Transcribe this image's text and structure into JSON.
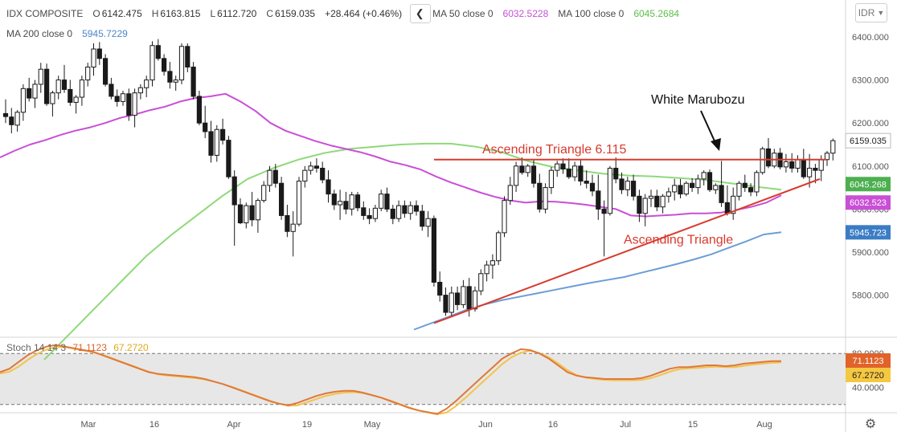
{
  "header": {
    "symbol": "IDX COMPOSITE",
    "o_key": "O",
    "open": "6142.475",
    "h_key": "H",
    "high": "6163.815",
    "l_key": "L",
    "low": "6112.720",
    "c_key": "C",
    "close": "6159.035",
    "change": "+28.464 (+0.46%)",
    "back_glyph": "❮",
    "ma50_label": "MA 50 close 0",
    "ma50_value": "6032.5228",
    "ma100_label": "MA 100 close 0",
    "ma100_value": "6045.2684",
    "ma200_label": "MA 200 close 0",
    "ma200_value": "5945.7229",
    "currency": "IDR"
  },
  "stoch": {
    "label": "Stoch 14 14 3",
    "k_value": "71.1123",
    "d_value": "67.2720"
  },
  "colors": {
    "up": "#ffffff",
    "down": "#1a1a1a",
    "wick": "#1a1a1a",
    "ma50": "#c94fd6",
    "ma100": "#8fd97a",
    "ma200": "#6b9ed6",
    "annotation": "#d83a2e",
    "stoch_k": "#e0783a",
    "stoch_d": "#f2c34e",
    "stoch_band": "#e7e7e7",
    "price_tag": "#3c3c3c",
    "grid": "#e6e6e6"
  },
  "chart_data": {
    "type": "candlestick",
    "title": "IDX COMPOSITE",
    "ylim": [
      5720,
      6440
    ],
    "y_ticks": [
      "6400.000",
      "6300.000",
      "6200.000",
      "6100.000",
      "6000.000",
      "5900.000",
      "5800.000"
    ],
    "x_ticks": [
      "Mar",
      "16",
      "Apr",
      "19",
      "May",
      "Jun",
      "16",
      "Jul",
      "15",
      "Aug"
    ],
    "price_tags": [
      "6159.035",
      "6045.268",
      "6032.523",
      "5945.723"
    ],
    "candles": [
      [
        6222,
        6255,
        6200,
        6215
      ],
      [
        6214,
        6235,
        6176,
        6196
      ],
      [
        6195,
        6230,
        6180,
        6225
      ],
      [
        6225,
        6290,
        6205,
        6280
      ],
      [
        6280,
        6305,
        6250,
        6258
      ],
      [
        6258,
        6300,
        6235,
        6290
      ],
      [
        6290,
        6340,
        6270,
        6325
      ],
      [
        6325,
        6338,
        6240,
        6245
      ],
      [
        6245,
        6275,
        6215,
        6270
      ],
      [
        6270,
        6310,
        6255,
        6300
      ],
      [
        6300,
        6335,
        6270,
        6278
      ],
      [
        6278,
        6300,
        6240,
        6248
      ],
      [
        6248,
        6265,
        6222,
        6260
      ],
      [
        6260,
        6310,
        6240,
        6300
      ],
      [
        6300,
        6340,
        6285,
        6330
      ],
      [
        6330,
        6385,
        6310,
        6372
      ],
      [
        6372,
        6388,
        6335,
        6350
      ],
      [
        6350,
        6360,
        6285,
        6290
      ],
      [
        6290,
        6305,
        6255,
        6262
      ],
      [
        6262,
        6278,
        6238,
        6250
      ],
      [
        6250,
        6275,
        6240,
        6268
      ],
      [
        6268,
        6280,
        6205,
        6218
      ],
      [
        6218,
        6280,
        6190,
        6270
      ],
      [
        6270,
        6290,
        6255,
        6282
      ],
      [
        6282,
        6310,
        6260,
        6300
      ],
      [
        6300,
        6390,
        6285,
        6380
      ],
      [
        6380,
        6395,
        6345,
        6350
      ],
      [
        6350,
        6360,
        6310,
        6320
      ],
      [
        6320,
        6342,
        6280,
        6295
      ],
      [
        6295,
        6310,
        6275,
        6300
      ],
      [
        6300,
        6385,
        6290,
        6378
      ],
      [
        6378,
        6385,
        6318,
        6330
      ],
      [
        6330,
        6342,
        6255,
        6262
      ],
      [
        6262,
        6275,
        6195,
        6200
      ],
      [
        6200,
        6240,
        6165,
        6180
      ],
      [
        6180,
        6205,
        6108,
        6125
      ],
      [
        6125,
        6195,
        6110,
        6185
      ],
      [
        6185,
        6210,
        6150,
        6160
      ],
      [
        6160,
        6170,
        6070,
        6075
      ],
      [
        6075,
        6090,
        5915,
        6010
      ],
      [
        6010,
        6025,
        5965,
        5968
      ],
      [
        5968,
        6015,
        5955,
        6008
      ],
      [
        6008,
        6040,
        5960,
        5975
      ],
      [
        5975,
        6025,
        5945,
        6020
      ],
      [
        6020,
        6065,
        6015,
        6055
      ],
      [
        6055,
        6100,
        6040,
        6090
      ],
      [
        6090,
        6105,
        6050,
        6060
      ],
      [
        6060,
        6075,
        5975,
        5985
      ],
      [
        5985,
        6010,
        5935,
        5948
      ],
      [
        5948,
        5995,
        5890,
        5965
      ],
      [
        5965,
        6075,
        5960,
        6065
      ],
      [
        6065,
        6100,
        6050,
        6090
      ],
      [
        6090,
        6110,
        6080,
        6100
      ],
      [
        6100,
        6118,
        6085,
        6095
      ],
      [
        6095,
        6110,
        6060,
        6068
      ],
      [
        6068,
        6090,
        6015,
        6035
      ],
      [
        6035,
        6045,
        5998,
        6010
      ],
      [
        6010,
        6045,
        5975,
        6018
      ],
      [
        6018,
        6040,
        5988,
        6000
      ],
      [
        6000,
        6040,
        5985,
        6033
      ],
      [
        6033,
        6040,
        5995,
        6003
      ],
      [
        6003,
        6018,
        5975,
        5985
      ],
      [
        5985,
        6002,
        5965,
        5978
      ],
      [
        5978,
        6010,
        5970,
        6002
      ],
      [
        6002,
        6045,
        5995,
        6035
      ],
      [
        6035,
        6050,
        5993,
        6000
      ],
      [
        6000,
        6010,
        5965,
        5978
      ],
      [
        5978,
        6020,
        5970,
        6008
      ],
      [
        6008,
        6020,
        5980,
        5990
      ],
      [
        5990,
        6018,
        5975,
        6008
      ],
      [
        6008,
        6020,
        5985,
        5995
      ],
      [
        5995,
        6010,
        5950,
        5960
      ],
      [
        5960,
        5995,
        5935,
        5978
      ],
      [
        5978,
        5985,
        5820,
        5830
      ],
      [
        5830,
        5855,
        5785,
        5800
      ],
      [
        5800,
        5818,
        5752,
        5760
      ],
      [
        5760,
        5820,
        5750,
        5805
      ],
      [
        5805,
        5820,
        5765,
        5778
      ],
      [
        5778,
        5835,
        5770,
        5820
      ],
      [
        5820,
        5840,
        5750,
        5768
      ],
      [
        5768,
        5820,
        5762,
        5810
      ],
      [
        5810,
        5860,
        5800,
        5850
      ],
      [
        5850,
        5880,
        5832,
        5870
      ],
      [
        5870,
        5895,
        5838,
        5880
      ],
      [
        5880,
        5950,
        5870,
        5945
      ],
      [
        5945,
        6030,
        5935,
        6020
      ],
      [
        6020,
        6075,
        6010,
        6055
      ],
      [
        6055,
        6110,
        6040,
        6100
      ],
      [
        6100,
        6120,
        6080,
        6085
      ],
      [
        6085,
        6105,
        6075,
        6100
      ],
      [
        6100,
        6115,
        6050,
        6060
      ],
      [
        6060,
        6082,
        5992,
        6000
      ],
      [
        6000,
        6060,
        5990,
        6050
      ],
      [
        6050,
        6098,
        6035,
        6090
      ],
      [
        6090,
        6112,
        6075,
        6105
      ],
      [
        6105,
        6118,
        6082,
        6093
      ],
      [
        6093,
        6118,
        6070,
        6075
      ],
      [
        6075,
        6110,
        6065,
        6100
      ],
      [
        6100,
        6115,
        6055,
        6065
      ],
      [
        6065,
        6090,
        6048,
        6060
      ],
      [
        6060,
        6080,
        6030,
        6042
      ],
      [
        6042,
        6080,
        5975,
        6000
      ],
      [
        6000,
        6020,
        5890,
        5990
      ],
      [
        5990,
        6100,
        5985,
        6095
      ],
      [
        6095,
        6120,
        6060,
        6070
      ],
      [
        6070,
        6085,
        6035,
        6045
      ],
      [
        6045,
        6075,
        6030,
        6065
      ],
      [
        6065,
        6080,
        6020,
        6030
      ],
      [
        6030,
        6045,
        5970,
        5990
      ],
      [
        5990,
        6035,
        5960,
        6025
      ],
      [
        6025,
        6045,
        6005,
        6030
      ],
      [
        6030,
        6045,
        5995,
        6005
      ],
      [
        6005,
        6035,
        5990,
        6030
      ],
      [
        6030,
        6050,
        6015,
        6040
      ],
      [
        6040,
        6070,
        6020,
        6055
      ],
      [
        6055,
        6070,
        6025,
        6035
      ],
      [
        6035,
        6065,
        6030,
        6060
      ],
      [
        6060,
        6072,
        6040,
        6050
      ],
      [
        6050,
        6080,
        6035,
        6070
      ],
      [
        6070,
        6090,
        6055,
        6085
      ],
      [
        6085,
        6092,
        6040,
        6045
      ],
      [
        6045,
        6060,
        6035,
        6055
      ],
      [
        6055,
        6112,
        6005,
        6015
      ],
      [
        6015,
        6055,
        5985,
        5990
      ],
      [
        5990,
        6050,
        5975,
        6030
      ],
      [
        6030,
        6065,
        6020,
        6060
      ],
      [
        6060,
        6080,
        6040,
        6050
      ],
      [
        6050,
        6060,
        6030,
        6040
      ],
      [
        6040,
        6090,
        6030,
        6085
      ],
      [
        6085,
        6145,
        6080,
        6140
      ],
      [
        6140,
        6165,
        6095,
        6100
      ],
      [
        6100,
        6140,
        6095,
        6130
      ],
      [
        6130,
        6142,
        6092,
        6098
      ],
      [
        6098,
        6128,
        6085,
        6110
      ],
      [
        6110,
        6130,
        6085,
        6095
      ],
      [
        6095,
        6125,
        6085,
        6115
      ],
      [
        6115,
        6140,
        6070,
        6075
      ],
      [
        6075,
        6128,
        6050,
        6095
      ],
      [
        6095,
        6105,
        6060,
        6090
      ],
      [
        6090,
        6125,
        6065,
        6115
      ],
      [
        6115,
        6135,
        6100,
        6130
      ],
      [
        6130,
        6164,
        6113,
        6159
      ]
    ],
    "ma50": [
      6120,
      6136,
      6150,
      6160,
      6172,
      6182,
      6190,
      6200,
      6212,
      6220,
      6230,
      6238,
      6250,
      6258,
      6262,
      6268,
      6250,
      6228,
      6200,
      6182,
      6170,
      6158,
      6148,
      6140,
      6132,
      6122,
      6110,
      6102,
      6092,
      6076,
      6062,
      6050,
      6038,
      6028,
      6020,
      6015,
      6018,
      6017,
      6014,
      6010,
      6005,
      6000,
      5985,
      5983,
      5985,
      5987,
      5990,
      5990,
      5992,
      5998,
      6005,
      6015,
      6032
    ],
    "ma100": [
      5650,
      5710,
      5770,
      5830,
      5890,
      5940,
      5985,
      6030,
      6070,
      6095,
      6115,
      6130,
      6140,
      6145,
      6150,
      6152,
      6152,
      6145,
      6132,
      6112,
      6098,
      6090,
      6082,
      6078,
      6076,
      6072,
      6068,
      6060,
      6052,
      6045
    ],
    "ma200": [
      5720,
      5735,
      5750,
      5766,
      5778,
      5788,
      5796,
      5804,
      5812,
      5820,
      5828,
      5835,
      5842,
      5852,
      5862,
      5872,
      5883,
      5895,
      5910,
      5925,
      5941,
      5946
    ],
    "trendlines": [
      {
        "label": "Ascending Triangle   6.115",
        "from": [
          5,
          6115
        ],
        "to": [
          9,
          6115
        ]
      },
      {
        "label": "Ascending Triangle",
        "from": [
          5,
          5750
        ],
        "to": [
          9,
          6075
        ]
      }
    ],
    "annotations": [
      "White Marubozu"
    ],
    "stoch_ticks": [
      "80.0000",
      "40.0000"
    ],
    "stoch_ylim": [
      0,
      100
    ],
    "stoch_k": [
      58,
      62,
      70,
      78,
      84,
      88,
      90,
      88,
      86,
      84,
      82,
      78,
      74,
      70,
      66,
      62,
      58,
      56,
      55,
      54,
      53,
      52,
      50,
      47,
      44,
      40,
      36,
      32,
      28,
      24,
      21,
      19,
      22,
      26,
      30,
      33,
      35,
      36,
      36,
      34,
      31,
      28,
      24,
      20,
      16,
      13,
      11,
      9,
      15,
      24,
      34,
      44,
      54,
      64,
      74,
      80,
      85,
      84,
      80,
      74,
      66,
      58,
      54,
      52,
      51,
      50,
      50,
      50,
      50,
      51,
      54,
      58,
      62,
      64,
      64,
      65,
      66,
      66,
      65,
      66,
      68,
      69,
      70,
      71,
      71
    ]
  }
}
